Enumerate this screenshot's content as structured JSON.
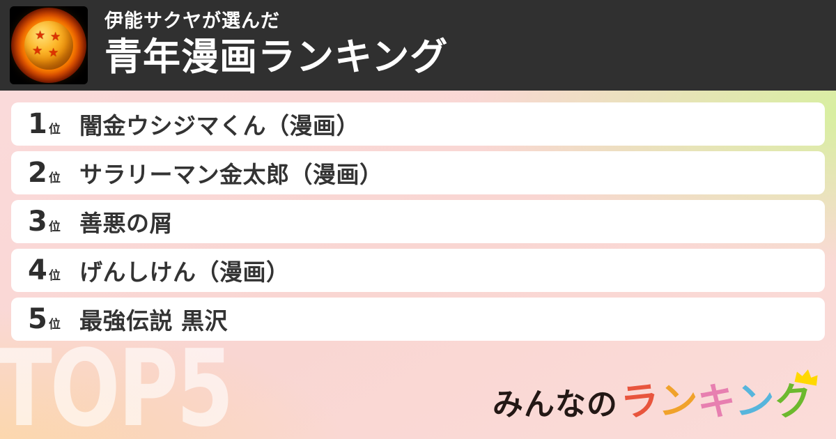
{
  "header": {
    "bg_color": "#303030",
    "avatar": "four-star-dragon-ball",
    "subtitle": "伊能サクヤが選んだ",
    "title": "青年漫画ランキング"
  },
  "ranking": {
    "rank_suffix": "位",
    "items": [
      {
        "rank": "1",
        "title": "闇金ウシジマくん（漫画）"
      },
      {
        "rank": "2",
        "title": "サラリーマン金太郎（漫画）"
      },
      {
        "rank": "3",
        "title": "善悪の屑"
      },
      {
        "rank": "4",
        "title": "げんしけん（漫画）"
      },
      {
        "rank": "5",
        "title": "最強伝説 黒沢"
      }
    ]
  },
  "footer": {
    "watermark": "TOP5",
    "logo": {
      "full_text": "みんなのランキング",
      "prefix": "みんなの",
      "prefix_color": "#231815",
      "colored_chars": [
        {
          "char": "ラ",
          "color": "#e8553d"
        },
        {
          "char": "ン",
          "color": "#f0a22b"
        },
        {
          "char": "キ",
          "color": "#e77fb0"
        },
        {
          "char": "ン",
          "color": "#57b5dc"
        },
        {
          "char": "ク",
          "color": "#6cb92e"
        }
      ],
      "crown_color": "#ffd800"
    }
  },
  "background": {
    "top_left": "#fadada",
    "top_right": "#d6f09e",
    "bottom_left": "#fcd7a6",
    "bottom_right": "#fbdcd9"
  }
}
